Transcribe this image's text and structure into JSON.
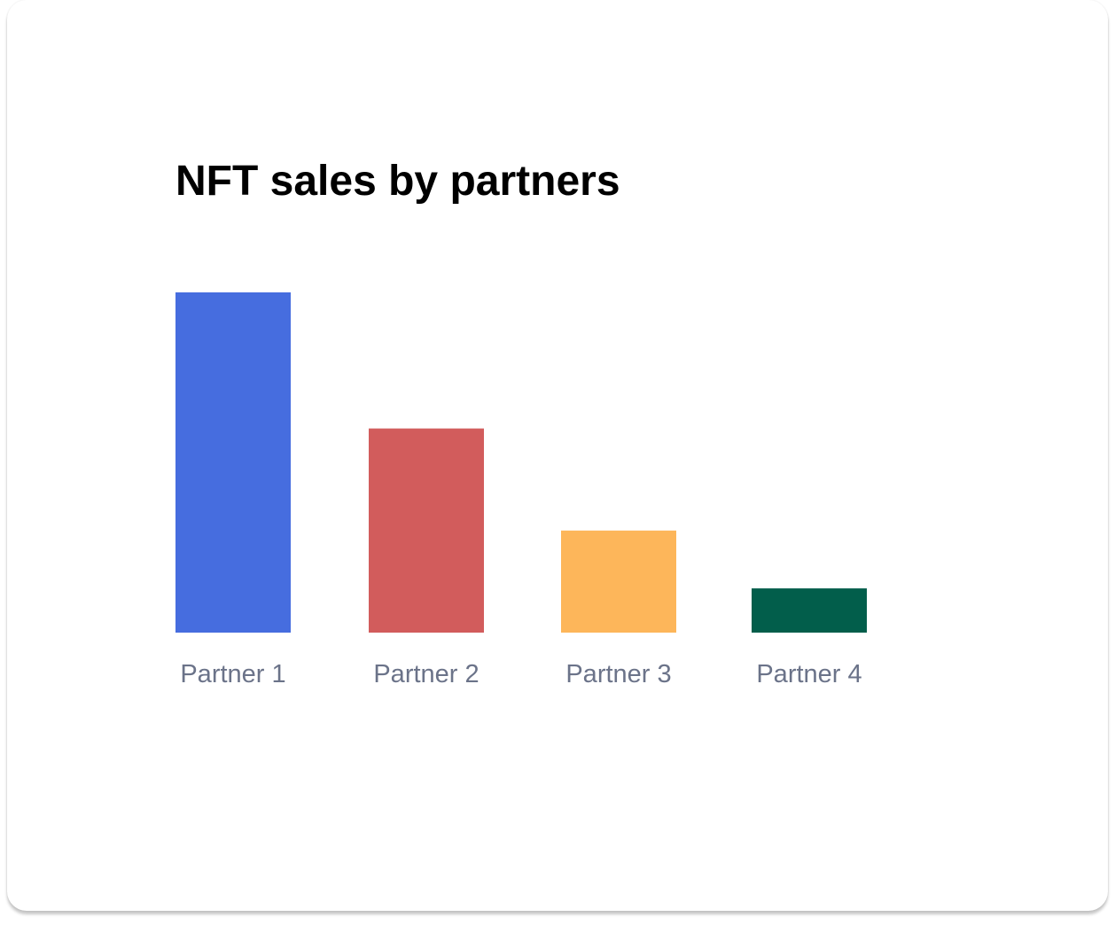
{
  "chart_data": {
    "type": "bar",
    "title": "NFT sales by partners",
    "categories": [
      "Partner 1",
      "Partner 2",
      "Partner 3",
      "Partner 4"
    ],
    "values": [
      100,
      60,
      30,
      13
    ],
    "colors": [
      "#466ddf",
      "#d25c5c",
      "#fdb65a",
      "#025e4b"
    ],
    "xlabel": "",
    "ylabel": "",
    "ylim": [
      0,
      100
    ],
    "grid": false,
    "legend": "none"
  }
}
